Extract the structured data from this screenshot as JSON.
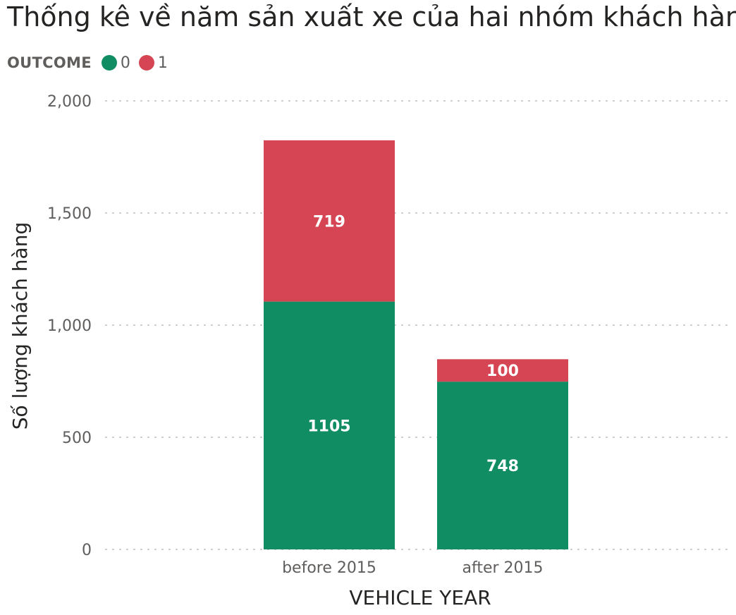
{
  "chart_data": {
    "type": "bar",
    "stacked": true,
    "title": "Thống kê về năm sản xuất xe của hai nhóm khách hàng",
    "xlabel": "VEHICLE YEAR",
    "ylabel": "Số lượng khách hàng",
    "categories": [
      "before 2015",
      "after 2015"
    ],
    "ylim": [
      0,
      2000
    ],
    "yticks": [
      0,
      500,
      1000,
      1500,
      2000
    ],
    "ytick_labels": [
      "0",
      "500",
      "1,000",
      "1,500",
      "2,000"
    ],
    "grid": true,
    "legend": {
      "title": "OUTCOME",
      "position": "top-left"
    },
    "series": [
      {
        "name": "0",
        "color": "#118d64",
        "values": [
          1105,
          748
        ]
      },
      {
        "name": "1",
        "color": "#d64553",
        "values": [
          719,
          100
        ]
      }
    ]
  }
}
